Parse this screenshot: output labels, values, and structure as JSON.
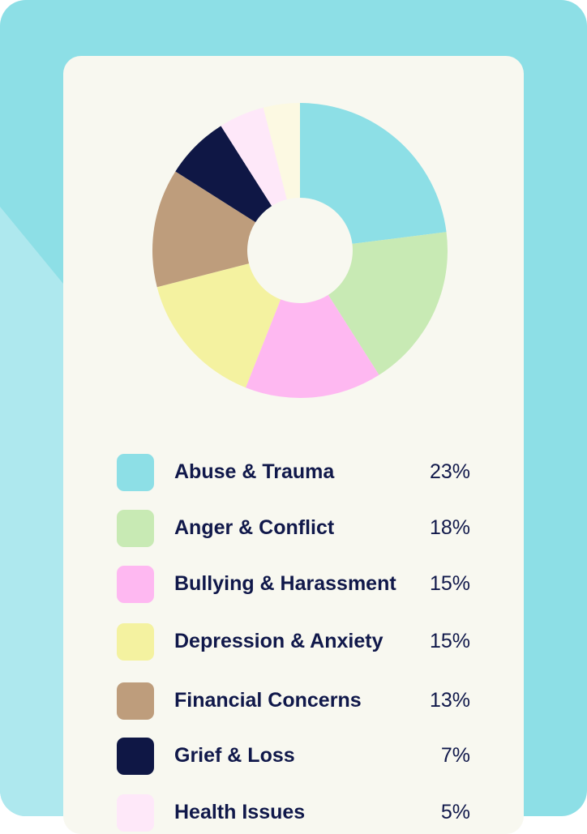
{
  "chart_data": {
    "type": "pie",
    "donut": true,
    "legend_position": "bottom",
    "slices": [
      {
        "name": "Abuse & Trauma",
        "value": 23,
        "label": "23%",
        "color": "#8ddfe6"
      },
      {
        "name": "Anger & Conflict",
        "value": 18,
        "label": "18%",
        "color": "#c8eab4"
      },
      {
        "name": "Bullying & Harassment",
        "value": 15,
        "label": "15%",
        "color": "#feb8f1"
      },
      {
        "name": "Depression & Anxiety",
        "value": 15,
        "label": "15%",
        "color": "#f4f2a0"
      },
      {
        "name": "Financial Concerns",
        "value": 13,
        "label": "13%",
        "color": "#be9d7c"
      },
      {
        "name": "Grief & Loss",
        "value": 7,
        "label": "7%",
        "color": "#0f1745"
      },
      {
        "name": "Health Issues",
        "value": 5,
        "label": "5%",
        "color": "#fee8f9"
      },
      {
        "name": "",
        "value": 4,
        "label": "",
        "color": "#fcf9e2"
      }
    ]
  },
  "colors": {
    "background": "#8ddfe6",
    "card": "#f8f8f0",
    "text": "#10184a"
  }
}
